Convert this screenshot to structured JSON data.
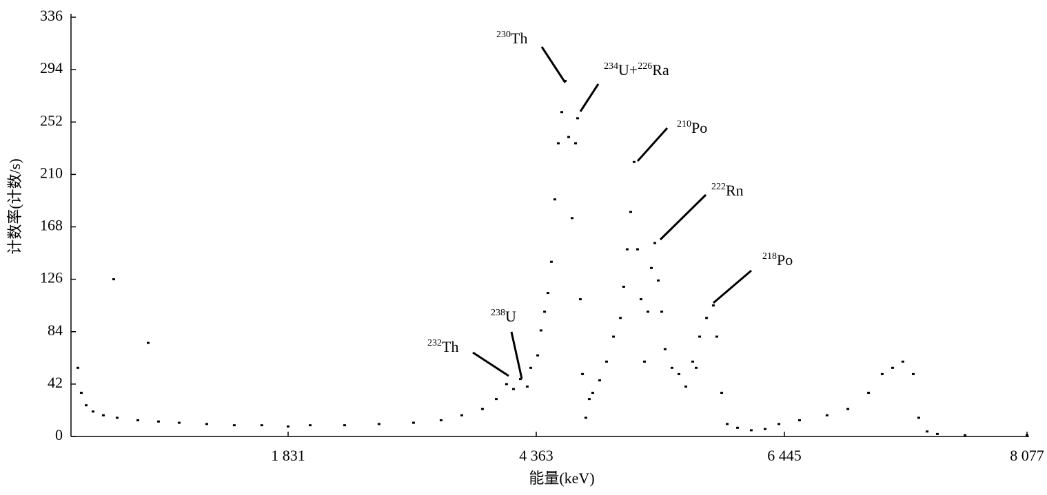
{
  "chart_data": {
    "type": "scatter",
    "xlabel": "能量(keV)",
    "ylabel": "计数率(计数/s)",
    "xlim": [
      0,
      8077
    ],
    "xticks": [
      {
        "value": 1831,
        "label": "1 831"
      },
      {
        "value": 4363,
        "label": "4 363"
      },
      {
        "value": 6445,
        "label": "6 445"
      },
      {
        "value": 8077,
        "label": "8 077"
      }
    ],
    "ylim": [
      0,
      336
    ],
    "yticks": [
      0,
      42,
      84,
      126,
      168,
      210,
      252,
      294,
      336
    ],
    "color": "#000000",
    "x": [
      58,
      87,
      128,
      186,
      273,
      360,
      389,
      564,
      651,
      738,
      912,
      1145,
      1377,
      1609,
      1831,
      2056,
      2408,
      2759,
      3111,
      3392,
      3603,
      3814,
      3955,
      4060,
      4131,
      4201,
      4271,
      4307,
      4375,
      4403,
      4433,
      4461,
      4490,
      4519,
      4548,
      4577,
      4606,
      4635,
      4664,
      4693,
      4710,
      4733,
      4751,
      4779,
      4808,
      4837,
      4895,
      4953,
      5011,
      5069,
      5097,
      5126,
      5155,
      5184,
      5213,
      5242,
      5271,
      5300,
      5329,
      5358,
      5387,
      5416,
      5444,
      5502,
      5560,
      5618,
      5676,
      5705,
      5734,
      5792,
      5849,
      5878,
      5919,
      5965,
      6052,
      6167,
      6283,
      6399,
      6547,
      6732,
      6872,
      7011,
      7103,
      7173,
      7242,
      7312,
      7349,
      7405,
      7474,
      7660,
      8077
    ],
    "values": [
      55,
      35,
      25,
      20,
      17,
      126,
      15,
      13,
      75,
      12,
      11,
      10,
      9,
      9,
      8,
      9,
      9,
      10,
      11,
      13,
      17,
      22,
      30,
      42,
      38,
      46,
      40,
      55,
      65,
      85,
      100,
      115,
      140,
      190,
      235,
      260,
      285,
      240,
      175,
      235,
      255,
      110,
      50,
      15,
      30,
      35,
      45,
      60,
      80,
      95,
      120,
      150,
      180,
      220,
      150,
      110,
      60,
      100,
      135,
      155,
      125,
      100,
      70,
      55,
      50,
      40,
      60,
      55,
      80,
      95,
      105,
      80,
      35,
      10,
      7,
      5,
      6,
      10,
      13,
      17,
      22,
      35,
      50,
      55,
      60,
      50,
      15,
      4,
      2,
      1,
      1
    ],
    "annotations": [
      {
        "parts": [
          {
            "sup": "230",
            "text": "Th"
          }
        ]
      },
      {
        "parts": [
          {
            "sup": "234",
            "text": "U+"
          },
          {
            "sup": "226",
            "text": "Ra"
          }
        ]
      },
      {
        "parts": [
          {
            "sup": "210",
            "text": "Po"
          }
        ]
      },
      {
        "parts": [
          {
            "sup": "222",
            "text": "Rn"
          }
        ]
      },
      {
        "parts": [
          {
            "sup": "218",
            "text": "Po"
          }
        ]
      },
      {
        "parts": [
          {
            "sup": "238",
            "text": "U"
          }
        ]
      },
      {
        "parts": [
          {
            "sup": "232",
            "text": "Th"
          }
        ]
      }
    ]
  }
}
